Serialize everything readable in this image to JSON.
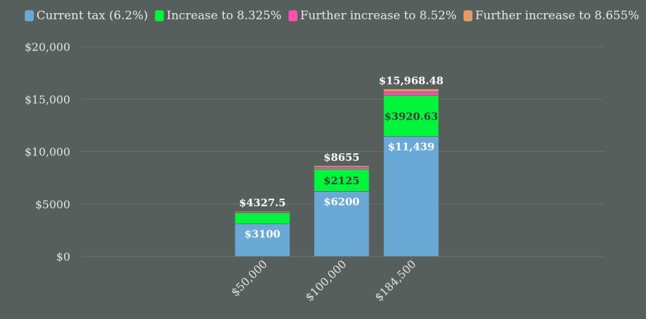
{
  "chart_data": {
    "type": "bar",
    "stacked": true,
    "categories": [
      "$50,000",
      "$100,000",
      "$184,500"
    ],
    "series": [
      {
        "name": "Current tax (6.2%)",
        "color": "#6aa9d6",
        "values": [
          3100,
          6200,
          11439
        ]
      },
      {
        "name": "Increase to 8.325%",
        "color": "#00f53b",
        "values": [
          1062.5,
          2125,
          3920.63
        ]
      },
      {
        "name": "Further increase to 8.52%",
        "color": "#ff4fb0",
        "values": [
          97.5,
          195,
          359.78
        ]
      },
      {
        "name": "Further increase to 8.655%",
        "color": "#e69a6c",
        "values": [
          67.5,
          135,
          249.07
        ]
      }
    ],
    "segment_labels": [
      [
        "$3100",
        "",
        "",
        ""
      ],
      [
        "$6200",
        "$2125",
        "",
        ""
      ],
      [
        "$11,439",
        "$3920.63",
        "",
        ""
      ]
    ],
    "totals": [
      "$4327.5",
      "$8655",
      "$15,968.48"
    ],
    "y_ticks": [
      0,
      5000,
      10000,
      15000,
      20000
    ],
    "y_tick_labels": [
      "$0",
      "$5000",
      "$10,000",
      "$15,000",
      "$20,000"
    ],
    "ylim": [
      0,
      20000
    ],
    "grid": true,
    "legend_position": "top-left"
  }
}
